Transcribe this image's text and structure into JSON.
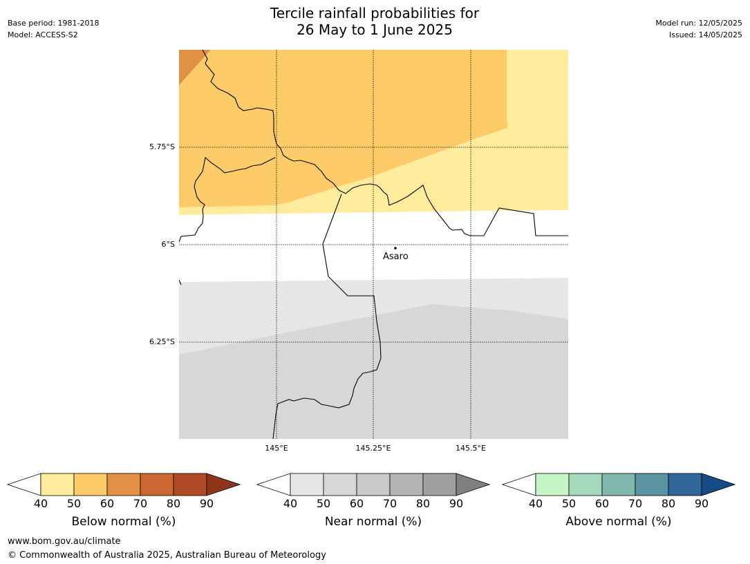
{
  "header": {
    "title_line1": "Tercile rainfall probabilities for",
    "title_line2": "26 May to 1 June 2025",
    "base_period": "Base period: 1981-2018",
    "model": "Model: ACCESS-S2",
    "model_run": "Model run: 12/05/2025",
    "issued": "Issued: 14/05/2025"
  },
  "map": {
    "lat_labels": [
      "5.75°S",
      "6°S",
      "6.25°S"
    ],
    "lon_labels": [
      "145°E",
      "145.25°E",
      "145.5°E"
    ],
    "place_label": "Asaro",
    "colors": {
      "below_40_50": "#ffeb9c",
      "below_50_60": "#fecb69",
      "below_60_70": "#e19146",
      "near_40_50": "#e6e6e6",
      "near_50_60": "#d7d7d7"
    }
  },
  "colorbars": [
    {
      "label": "Below normal (%)",
      "ticks": [
        "40",
        "50",
        "60",
        "70",
        "80",
        "90"
      ],
      "colors": [
        "#ffffff",
        "#ffeb9c",
        "#fecb69",
        "#e19146",
        "#cc6633",
        "#b04a26",
        "#8e3418"
      ]
    },
    {
      "label": "Near normal (%)",
      "ticks": [
        "40",
        "50",
        "60",
        "70",
        "80",
        "90"
      ],
      "colors": [
        "#ffffff",
        "#e6e6e6",
        "#d7d7d7",
        "#c9c9c9",
        "#b4b4b4",
        "#9f9f9f",
        "#808080"
      ]
    },
    {
      "label": "Above normal (%)",
      "ticks": [
        "40",
        "50",
        "60",
        "70",
        "80",
        "90"
      ],
      "colors": [
        "#ffffff",
        "#c6f6c7",
        "#a4d9bb",
        "#80b8b0",
        "#5b93a2",
        "#32679b",
        "#164b86"
      ]
    }
  ],
  "footer": {
    "url": "www.bom.gov.au/climate",
    "copyright": "© Commonwealth of Australia 2025, Australian Bureau of Meteorology"
  }
}
